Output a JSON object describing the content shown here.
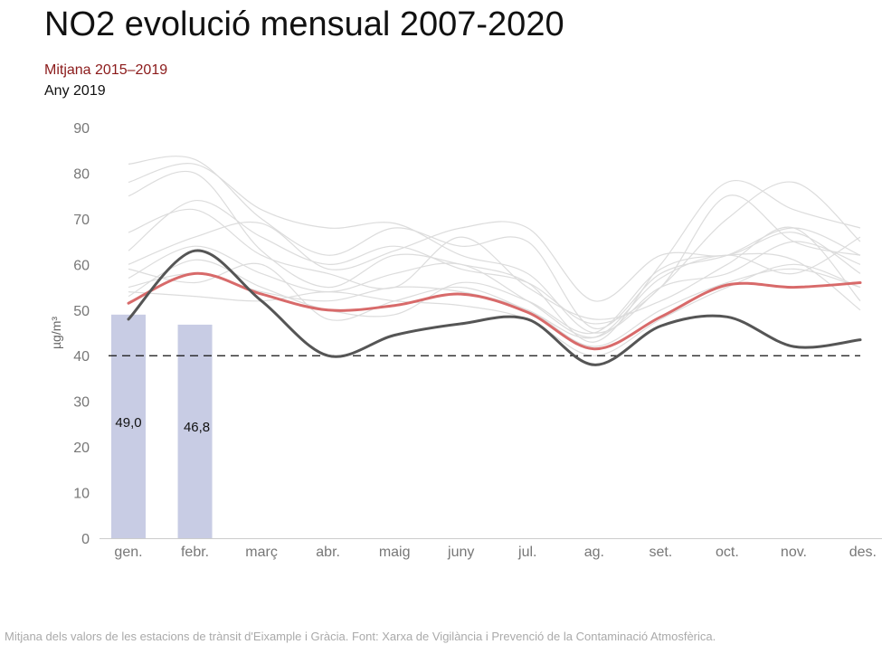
{
  "chart_data": {
    "type": "line",
    "title": "NO2 evolució mensual 2007-2020",
    "ylabel": "µg/m³",
    "ylim": [
      0,
      90
    ],
    "yticks": [
      0,
      10,
      20,
      30,
      40,
      50,
      60,
      70,
      80,
      90
    ],
    "categories": [
      "gen.",
      "febr.",
      "març",
      "abr.",
      "maig",
      "juny",
      "jul.",
      "ag.",
      "set.",
      "oct.",
      "nov.",
      "des."
    ],
    "threshold": 40,
    "colors": {
      "bar": "#c8cce4",
      "average": "#d86a6a",
      "year": "#555555",
      "history": "#dcdcdc",
      "threshold": "#111111"
    },
    "bars": {
      "values": [
        49.0,
        46.8,
        null,
        null,
        null,
        null,
        null,
        null,
        null,
        null,
        null,
        null
      ],
      "labels": [
        "49,0",
        "46,8"
      ]
    },
    "series": [
      {
        "name": "Mitjana 2015–2019",
        "role": "average",
        "values": [
          51.5,
          58,
          53.5,
          50,
          51,
          53.5,
          49.5,
          41.5,
          48.5,
          55.5,
          55,
          56
        ]
      },
      {
        "name": "Any 2019",
        "role": "year",
        "values": [
          48,
          63,
          52,
          40,
          44.5,
          47,
          48,
          38,
          46.5,
          48.5,
          42,
          43.5
        ]
      }
    ],
    "history": [
      [
        82,
        83,
        70,
        62,
        68,
        64,
        65,
        46,
        58,
        62,
        68,
        62
      ],
      [
        78,
        82,
        72,
        68,
        69,
        62,
        58,
        45,
        55,
        70,
        78,
        65
      ],
      [
        75,
        80,
        63,
        55,
        62,
        60,
        56,
        43,
        60,
        78,
        72,
        68
      ],
      [
        60,
        66,
        69,
        59,
        63,
        68,
        68,
        52,
        62,
        62,
        67,
        58
      ],
      [
        67,
        72,
        62,
        58,
        55,
        66,
        55,
        48,
        52,
        60,
        68,
        52
      ],
      [
        57,
        64,
        58,
        54,
        58,
        60,
        52,
        44,
        55,
        58,
        65,
        60
      ],
      [
        55,
        58,
        54,
        52,
        55,
        54,
        50,
        42,
        50,
        56,
        59,
        55
      ],
      [
        59,
        56,
        60,
        48,
        52,
        55,
        50,
        44,
        57,
        62,
        58,
        66
      ],
      [
        54,
        53,
        52,
        54,
        52,
        51,
        48,
        40,
        48,
        55,
        60,
        55
      ],
      [
        53,
        61,
        55,
        50,
        49,
        56,
        52,
        45,
        59,
        62,
        61,
        50
      ],
      [
        63,
        74,
        66,
        60,
        64,
        59,
        56,
        47,
        55,
        75,
        65,
        62
      ]
    ],
    "grid": false,
    "legend": "top-left"
  },
  "source": "Mitjana dels valors de les estacions de trànsit d'Eixample i Gràcia. Font: Xarxa de Vigilància i Prevenció de la Contaminació Atmosfèrica."
}
